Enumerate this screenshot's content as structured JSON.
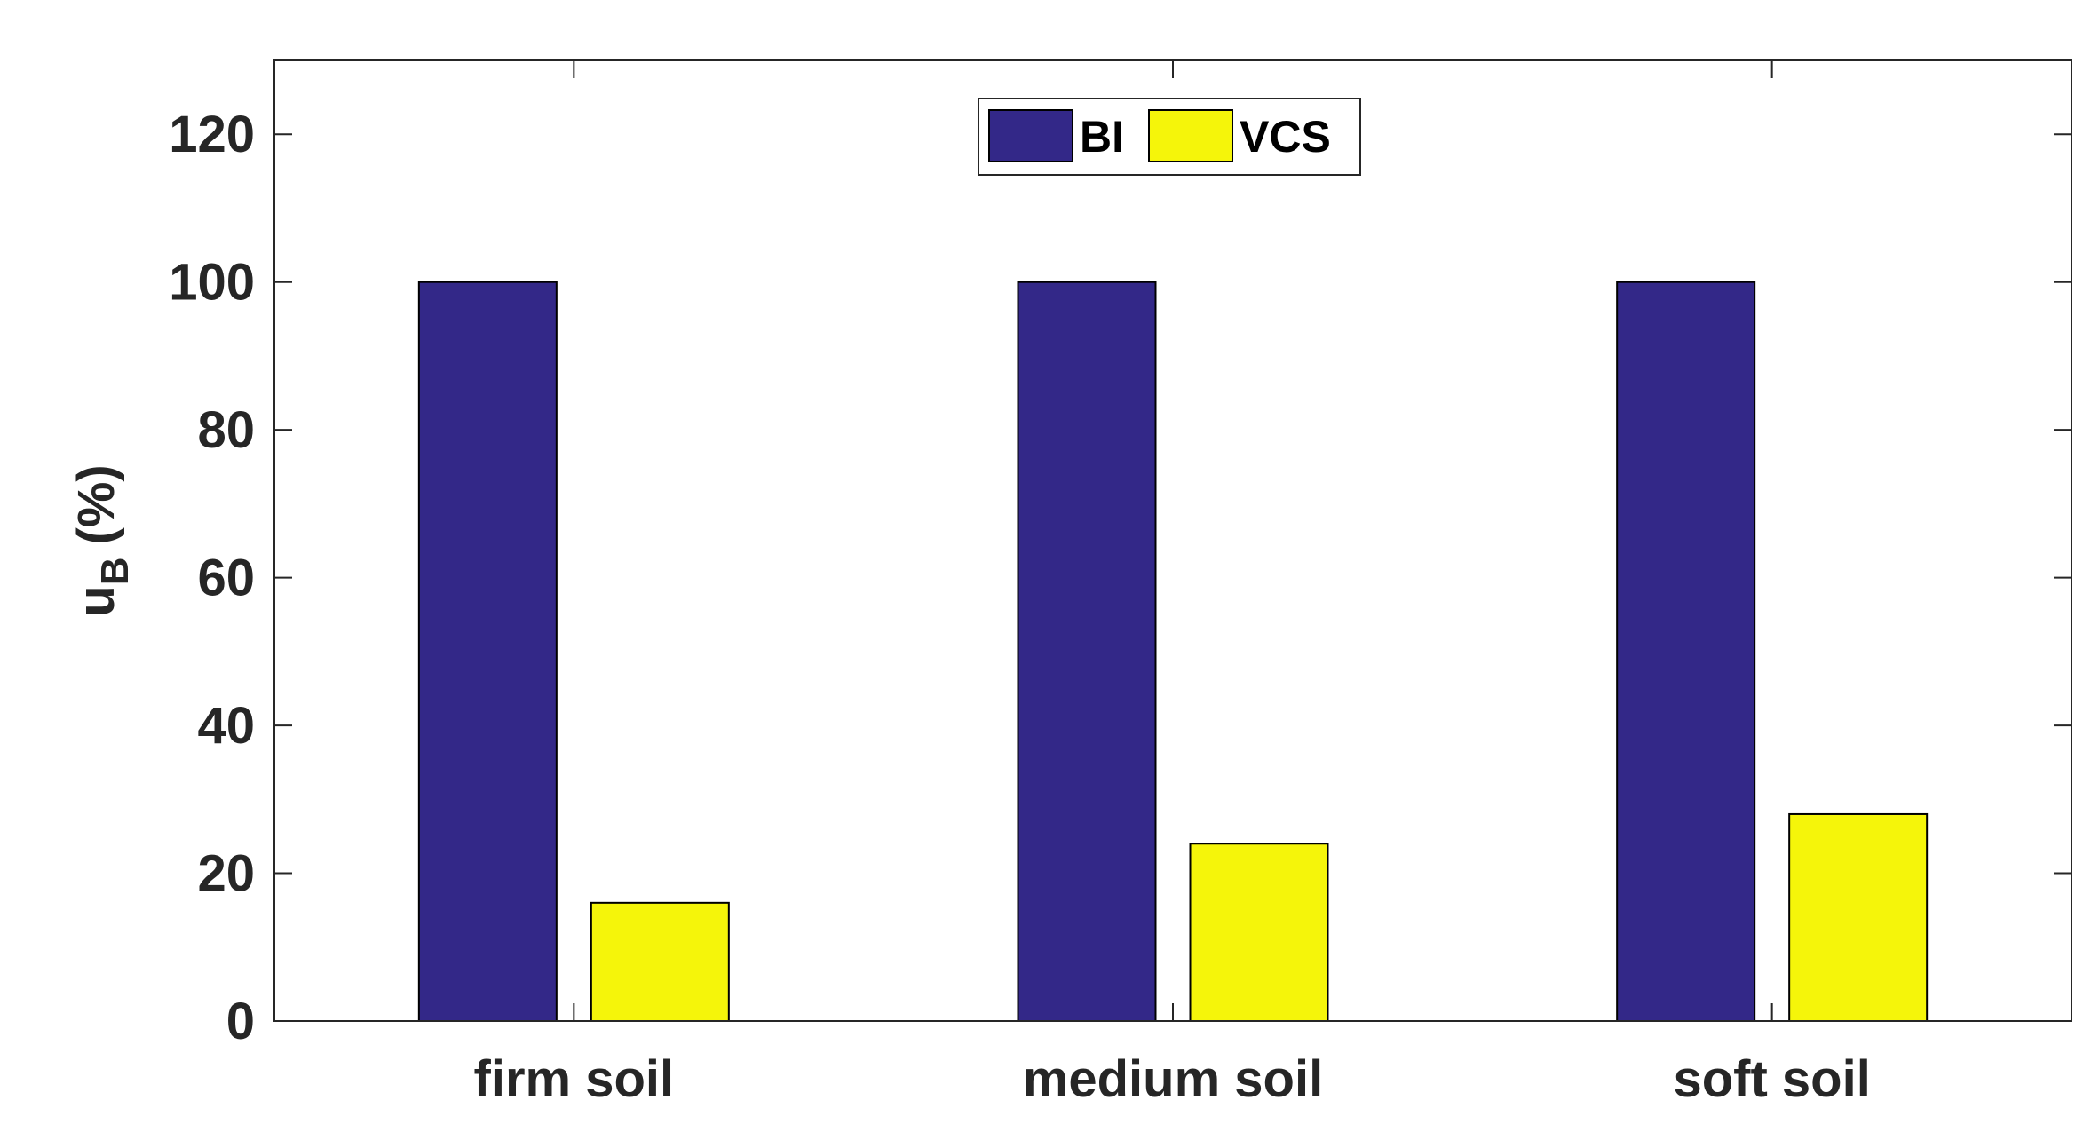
{
  "chart_data": {
    "type": "bar",
    "categories": [
      "firm soil",
      "medium soil",
      "soft soil"
    ],
    "series": [
      {
        "name": "BI",
        "values": [
          100,
          100,
          100
        ],
        "color": "#332888"
      },
      {
        "name": "VCS",
        "values": [
          16,
          24,
          28
        ],
        "color": "#F5F50A"
      }
    ],
    "ylabel": {
      "main": "u",
      "subscript": "B",
      "unit": "(%)"
    },
    "ylim": [
      0,
      130
    ],
    "yticks": [
      "0",
      "20",
      "40",
      "60",
      "80",
      "100",
      "120"
    ],
    "ytick_values": [
      0,
      20,
      40,
      60,
      80,
      100,
      120
    ],
    "grid": false,
    "legend": {
      "placement": "top-center",
      "orientation": "horizontal"
    }
  }
}
